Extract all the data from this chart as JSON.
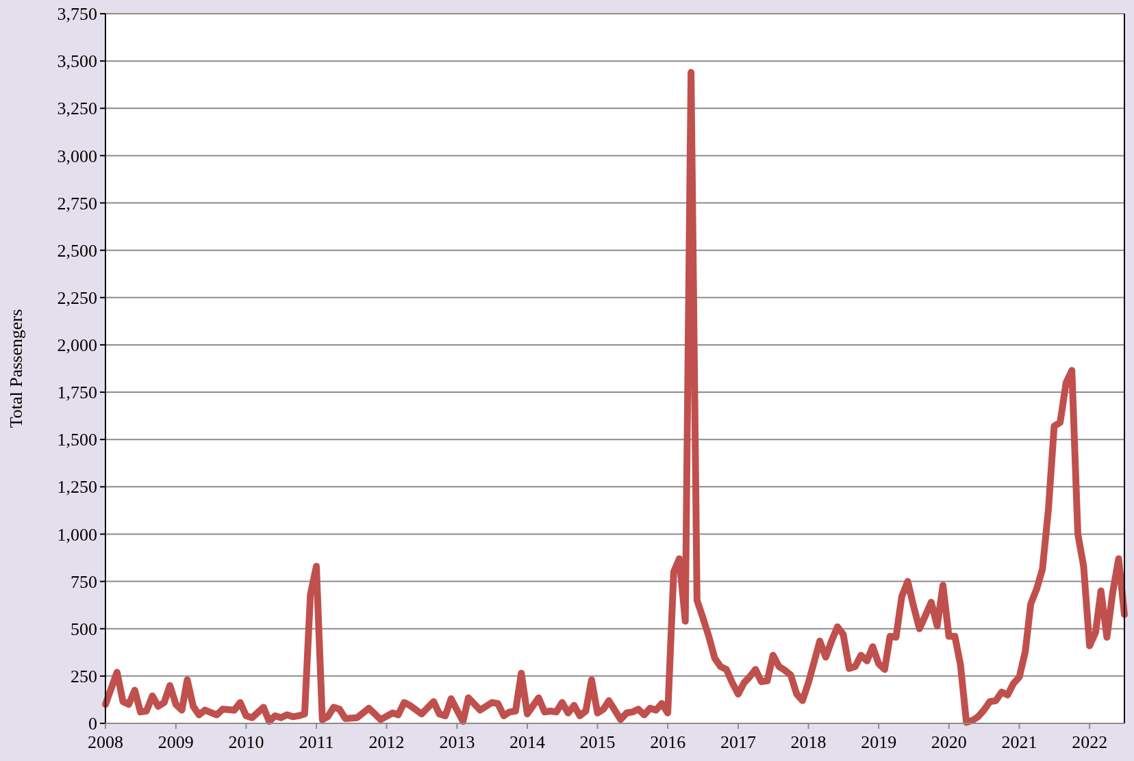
{
  "chart_data": {
    "type": "line",
    "ylabel": "Total Passengers",
    "xlim": [
      "2008-01",
      "2022-07"
    ],
    "xticks": [
      {
        "value": "2008-01",
        "label": "2008"
      },
      {
        "value": "2009-01",
        "label": "2009"
      },
      {
        "value": "2010-01",
        "label": "2010"
      },
      {
        "value": "2011-01",
        "label": "2011"
      },
      {
        "value": "2012-01",
        "label": "2012"
      },
      {
        "value": "2013-01",
        "label": "2013"
      },
      {
        "value": "2014-01",
        "label": "2014"
      },
      {
        "value": "2015-01",
        "label": "2015"
      },
      {
        "value": "2016-01",
        "label": "2016"
      },
      {
        "value": "2017-01",
        "label": "2017"
      },
      {
        "value": "2018-01",
        "label": "2018"
      },
      {
        "value": "2019-01",
        "label": "2019"
      },
      {
        "value": "2020-01",
        "label": "2020"
      },
      {
        "value": "2021-01",
        "label": "2021"
      },
      {
        "value": "2022-01",
        "label": "2022"
      }
    ],
    "ylim": [
      0,
      3750
    ],
    "yticks": [
      0,
      250,
      500,
      750,
      {
        "value": 1000,
        "label": "1,000"
      },
      {
        "value": 1250,
        "label": "1,250"
      },
      {
        "value": 1500,
        "label": "1,500"
      },
      {
        "value": 1750,
        "label": "1,750"
      },
      {
        "value": 2000,
        "label": "2,000"
      },
      {
        "value": 2250,
        "label": "2,250"
      },
      {
        "value": 2500,
        "label": "2,500"
      },
      {
        "value": 2750,
        "label": "2,750"
      },
      {
        "value": 3000,
        "label": "3,000"
      },
      {
        "value": 3250,
        "label": "3,250"
      },
      {
        "value": 3500,
        "label": "3,500"
      },
      {
        "value": 3750,
        "label": "3,750"
      }
    ],
    "grid": "y",
    "marker": "none",
    "line_style": "solid",
    "series": [
      {
        "color": "#c0504d",
        "x": [
          "2008-01",
          "2008-03",
          "2008-04",
          "2008-05",
          "2008-06",
          "2008-07",
          "2008-08",
          "2008-09",
          "2008-10",
          "2008-11",
          "2008-12",
          "2009-01",
          "2009-02",
          "2009-03",
          "2009-04",
          "2009-05",
          "2009-06",
          "2009-08",
          "2009-09",
          "2009-11",
          "2009-12",
          "2010-01",
          "2010-02",
          "2010-04",
          "2010-05",
          "2010-06",
          "2010-07",
          "2010-08",
          "2010-09",
          "2010-10",
          "2010-11",
          "2010-12",
          "2011-01",
          "2011-02",
          "2011-03",
          "2011-04",
          "2011-05",
          "2011-06",
          "2011-08",
          "2011-10",
          "2011-12",
          "2012-02",
          "2012-03",
          "2012-04",
          "2012-05",
          "2012-07",
          "2012-09",
          "2012-10",
          "2012-11",
          "2012-12",
          "2013-02",
          "2013-03",
          "2013-05",
          "2013-07",
          "2013-08",
          "2013-09",
          "2013-10",
          "2013-11",
          "2013-12",
          "2014-01",
          "2014-03",
          "2014-04",
          "2014-05",
          "2014-06",
          "2014-07",
          "2014-08",
          "2014-09",
          "2014-10",
          "2014-11",
          "2014-12",
          "2015-01",
          "2015-02",
          "2015-03",
          "2015-05",
          "2015-06",
          "2015-07",
          "2015-08",
          "2015-09",
          "2015-10",
          "2015-11",
          "2015-12",
          "2016-01",
          "2016-02",
          "2016-03",
          "2016-04",
          "2016-05",
          "2016-06",
          "2016-07",
          "2016-08",
          "2016-09",
          "2016-10",
          "2016-11",
          "2016-12",
          "2017-01",
          "2017-02",
          "2017-03",
          "2017-04",
          "2017-05",
          "2017-06",
          "2017-07",
          "2017-08",
          "2017-09",
          "2017-10",
          "2017-11",
          "2017-12",
          "2018-01",
          "2018-02",
          "2018-03",
          "2018-04",
          "2018-05",
          "2018-06",
          "2018-07",
          "2018-08",
          "2018-09",
          "2018-10",
          "2018-11",
          "2018-12",
          "2019-01",
          "2019-02",
          "2019-03",
          "2019-04",
          "2019-05",
          "2019-06",
          "2019-07",
          "2019-08",
          "2019-09",
          "2019-10",
          "2019-11",
          "2019-12",
          "2020-01",
          "2020-02",
          "2020-03",
          "2020-04",
          "2020-05",
          "2020-06",
          "2020-07",
          "2020-08",
          "2020-09",
          "2020-10",
          "2020-11",
          "2020-12",
          "2021-01",
          "2021-02",
          "2021-03",
          "2021-04",
          "2021-05",
          "2021-06",
          "2021-07",
          "2021-08",
          "2021-09",
          "2021-10",
          "2021-11",
          "2021-12",
          "2022-01",
          "2022-02",
          "2022-03",
          "2022-04",
          "2022-05",
          "2022-06",
          "2022-07"
        ],
        "values": [
          100,
          270,
          115,
          100,
          175,
          60,
          65,
          145,
          90,
          110,
          200,
          100,
          70,
          230,
          90,
          45,
          70,
          45,
          75,
          70,
          110,
          40,
          30,
          85,
          10,
          40,
          30,
          45,
          35,
          40,
          50,
          680,
          830,
          20,
          35,
          85,
          75,
          25,
          30,
          80,
          20,
          55,
          45,
          110,
          95,
          50,
          115,
          50,
          40,
          130,
          10,
          135,
          70,
          110,
          105,
          40,
          60,
          65,
          265,
          50,
          135,
          60,
          65,
          60,
          110,
          55,
          95,
          40,
          65,
          230,
          55,
          75,
          120,
          20,
          55,
          60,
          75,
          45,
          80,
          70,
          105,
          55,
          800,
          870,
          540,
          3440,
          650,
          560,
          460,
          345,
          300,
          285,
          215,
          155,
          215,
          245,
          285,
          220,
          225,
          360,
          300,
          280,
          255,
          155,
          120,
          215,
          330,
          435,
          350,
          435,
          510,
          470,
          290,
          300,
          360,
          330,
          405,
          315,
          285,
          460,
          455,
          670,
          750,
          620,
          500,
          570,
          640,
          515,
          730,
          460,
          460,
          310,
          5,
          15,
          35,
          70,
          115,
          120,
          165,
          150,
          210,
          245,
          380,
          630,
          710,
          815,
          1130,
          1570,
          1590,
          1800,
          1865,
          1000,
          830,
          410,
          480,
          700,
          455,
          690,
          870,
          575
        ]
      }
    ]
  }
}
